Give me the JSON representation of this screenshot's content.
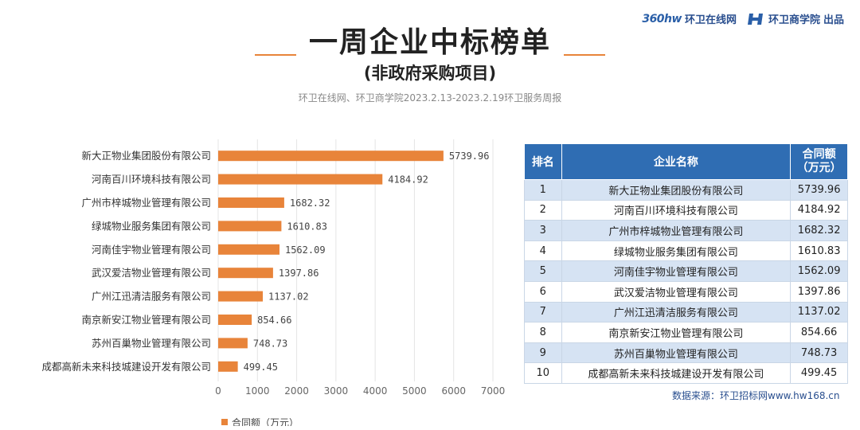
{
  "brand": {
    "site_logo_text": "360hw",
    "site": "环卫在线网",
    "school": "环卫商学院",
    "suffix": "出品"
  },
  "title": "一周企业中标榜单",
  "subtitle": "(非政府采购项目)",
  "source_line": "环卫在线网、环卫商学院2023.2.13-2023.2.19环卫服务周报",
  "colors": {
    "bar": "#e8843a",
    "header": "#2f6db3",
    "stripe": "#d6e3f3"
  },
  "chart_data": {
    "type": "bar",
    "orientation": "horizontal",
    "categories": [
      "新大正物业集团股份有限公司",
      "河南百川环境科技有限公司",
      "广州市梓城物业管理有限公司",
      "绿城物业服务集团有限公司",
      "河南佳宇物业管理有限公司",
      "武汉爱洁物业管理有限公司",
      "广州江迅清洁服务有限公司",
      "南京新安江物业管理有限公司",
      "苏州百巢物业管理有限公司",
      "成都高新未来科技城建设开发有限公司"
    ],
    "values": [
      5739.96,
      4184.92,
      1682.32,
      1610.83,
      1562.09,
      1397.86,
      1137.02,
      854.66,
      748.73,
      499.45
    ],
    "value_labels": [
      "5739.96",
      "4184.92",
      "1682.32",
      "1610.83",
      "1562.09",
      "1397.86",
      "1137.02",
      "854.66",
      "748.73",
      "499.45"
    ],
    "xlim": [
      0,
      7000
    ],
    "xticks": [
      "0",
      "1000",
      "2000",
      "3000",
      "4000",
      "5000",
      "6000",
      "7000"
    ],
    "legend": "合同额（万元）",
    "legend_position": "bottom",
    "grid": true
  },
  "table": {
    "headers": {
      "rank": "排名",
      "name": "企业名称",
      "amount_line1": "合同额",
      "amount_line2": "（万元）"
    },
    "rows": [
      {
        "rank": "1",
        "name": "新大正物业集团股份有限公司",
        "amount": "5739.96"
      },
      {
        "rank": "2",
        "name": "河南百川环境科技有限公司",
        "amount": "4184.92"
      },
      {
        "rank": "3",
        "name": "广州市梓城物业管理有限公司",
        "amount": "1682.32"
      },
      {
        "rank": "4",
        "name": "绿城物业服务集团有限公司",
        "amount": "1610.83"
      },
      {
        "rank": "5",
        "name": "河南佳宇物业管理有限公司",
        "amount": "1562.09"
      },
      {
        "rank": "6",
        "name": "武汉爱洁物业管理有限公司",
        "amount": "1397.86"
      },
      {
        "rank": "7",
        "name": "广州江迅清洁服务有限公司",
        "amount": "1137.02"
      },
      {
        "rank": "8",
        "name": "南京新安江物业管理有限公司",
        "amount": "854.66"
      },
      {
        "rank": "9",
        "name": "苏州百巢物业管理有限公司",
        "amount": "748.73"
      },
      {
        "rank": "10",
        "name": "成都高新未来科技城建设开发有限公司",
        "amount": "499.45"
      }
    ]
  },
  "footer": "数据来源：环卫招标网www.hw168.cn"
}
